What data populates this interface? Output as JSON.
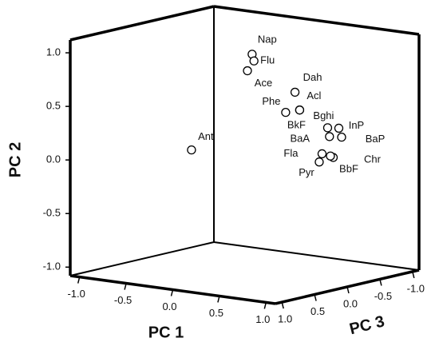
{
  "chart_data": {
    "type": "scatter3d",
    "x_label": "PC 1",
    "y_label": "PC 2",
    "z_label": "PC 3",
    "xlim": [
      -1.1,
      1.1
    ],
    "ylim": [
      -1.08,
      1.12
    ],
    "zlim": [
      -1.1,
      1.1
    ],
    "xticks": [
      {
        "value": -1,
        "label": "-1.0"
      },
      -0.5,
      {
        "value": 0,
        "label": "0.0"
      },
      0.5,
      {
        "value": 1,
        "label": "1.0"
      }
    ],
    "yticks": [
      {
        "value": -1,
        "label": "-1.0"
      },
      -0.5,
      {
        "value": 0,
        "label": "0.0"
      },
      0.5,
      {
        "value": 1,
        "label": "1.0"
      }
    ],
    "zticks": [
      {
        "value": -1,
        "label": "-1.0"
      },
      -0.5,
      {
        "value": 0,
        "label": "0.0"
      },
      0.5,
      {
        "value": 1,
        "label": "1.0"
      }
    ],
    "color": "#000000",
    "labels": [
      "Nap",
      "Flu",
      "Ace",
      "Dah",
      "Acl",
      "Phe",
      "BkF",
      "InP",
      "BaA",
      "BaP",
      "Fla",
      "Chr",
      "BbF",
      "Pyr",
      "Ant",
      "Bghi"
    ],
    "x": [
      0.08,
      0.1,
      0.03,
      0.54,
      0.59,
      0.44,
      0.89,
      1.01,
      0.91,
      1.04,
      0.83,
      0.95,
      0.92,
      0.8,
      -0.57,
      0.59
    ],
    "y": [
      0.97,
      0.91,
      0.81,
      0.67,
      0.51,
      0.47,
      0.38,
      0.39,
      0.3,
      0.31,
      0.13,
      0.11,
      0.12,
      0.05,
      0.0,
      0.51
    ],
    "z": [
      0,
      0,
      0,
      0,
      0,
      0,
      0,
      0,
      0,
      0,
      0,
      0,
      0,
      0,
      0,
      0
    ]
  }
}
